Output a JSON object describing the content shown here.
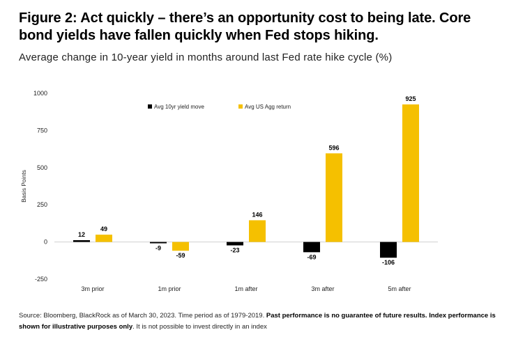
{
  "header": {
    "title": "Figure 2: Act quickly – there’s an opportunity cost to being late. Core bond yields have fallen quickly when Fed stops hiking.",
    "subtitle": "Average change in 10-year yield in months around last Fed rate hike cycle (%)"
  },
  "chart_data": {
    "type": "bar",
    "categories": [
      "3m prior",
      "1m prior",
      "1m after",
      "3m after",
      "5m after"
    ],
    "series": [
      {
        "name": "Avg 10yr yield move",
        "values": [
          12,
          -9,
          -23,
          -69,
          -106
        ],
        "color": "#000000"
      },
      {
        "name": "Avg US Agg return",
        "values": [
          49,
          -59,
          146,
          596,
          925
        ],
        "color": "#f5c000"
      }
    ],
    "ylabel": "Basis Points",
    "ylim": [
      -250,
      1000
    ],
    "yticks": [
      "1000",
      "750",
      "500",
      "250",
      "0",
      "-250"
    ],
    "grid": false,
    "legend": "top-center",
    "data_labels": true
  },
  "footer": {
    "source_plain": "Source: Bloomberg, BlackRock as of March 30, 2023. Time period as of 1979-2019. ",
    "source_bold": "Past performance is no guarantee of future results. Index performance is shown for illustrative purposes only",
    "source_tail": ". It is not possible to invest directly in an index"
  }
}
